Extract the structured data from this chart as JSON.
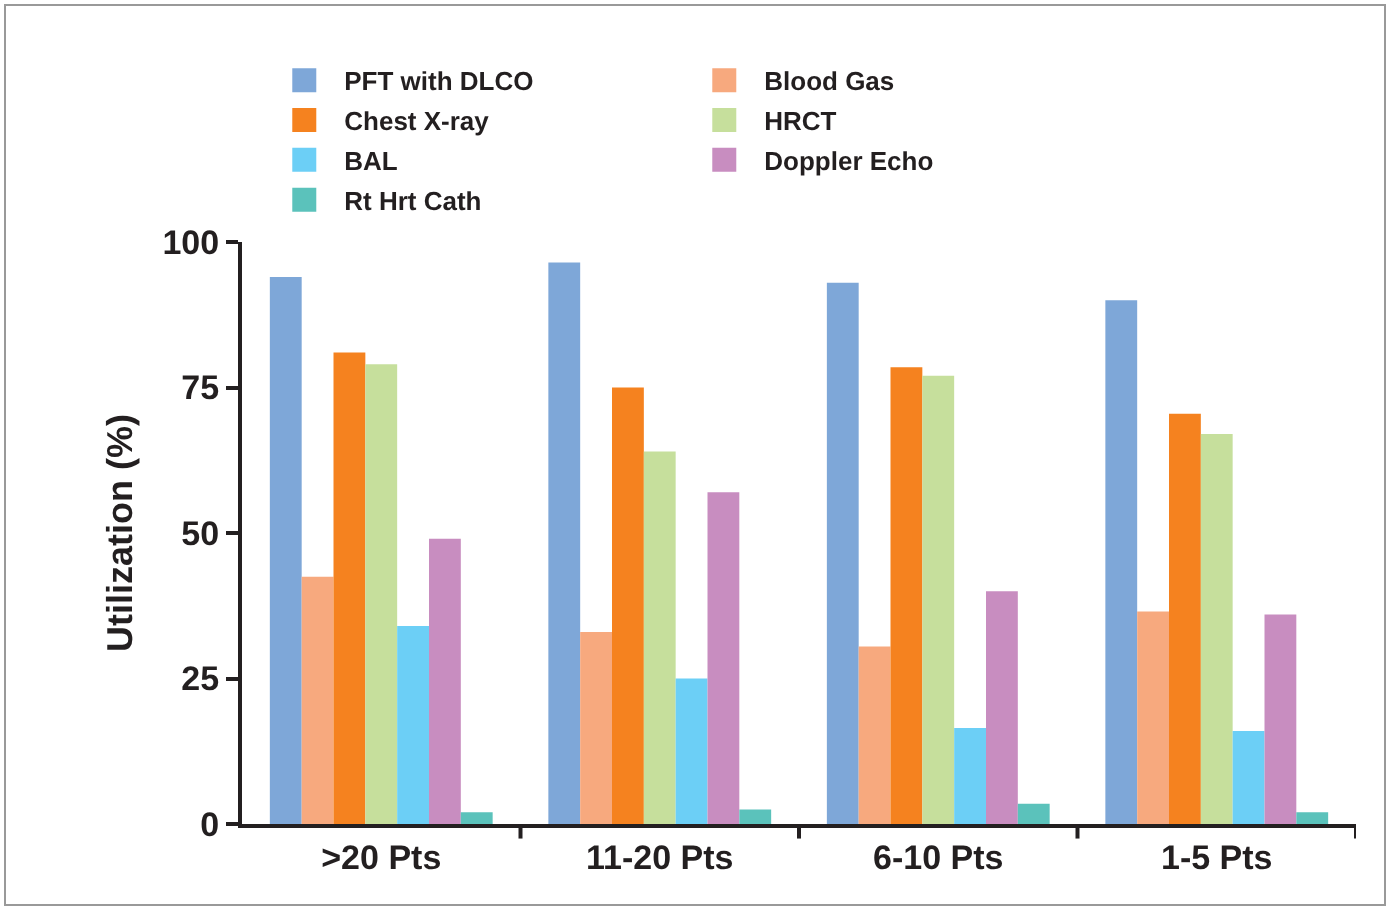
{
  "chart_data": {
    "type": "bar",
    "ylabel": "Utilization (%)",
    "categories": [
      ">20 Pts",
      "11-20 Pts",
      "6-10 Pts",
      "1-5 Pts"
    ],
    "series": [
      {
        "name": "PFT with DLCO",
        "color": "#7ea7d8",
        "values": [
          94,
          96.5,
          93,
          90
        ]
      },
      {
        "name": "Blood Gas",
        "color": "#f7a97e",
        "values": [
          42.5,
          33,
          30.5,
          36.5
        ]
      },
      {
        "name": "Chest X-ray",
        "color": "#f5821f",
        "values": [
          81,
          75,
          78.5,
          70.5
        ]
      },
      {
        "name": "HRCT",
        "color": "#c6df9c",
        "values": [
          79,
          64,
          77,
          67
        ]
      },
      {
        "name": "BAL",
        "color": "#6ccff6",
        "values": [
          34,
          25,
          16.5,
          16
        ]
      },
      {
        "name": "Doppler Echo",
        "color": "#c88dc0",
        "values": [
          49,
          57,
          40,
          36
        ]
      },
      {
        "name": "Rt Hrt Cath",
        "color": "#5bc2bb",
        "values": [
          2,
          2.5,
          3.5,
          2
        ]
      }
    ],
    "ylim": [
      0,
      100
    ],
    "yticks": [
      0,
      25,
      50,
      75,
      100
    ],
    "grid": false,
    "legend": "top"
  }
}
